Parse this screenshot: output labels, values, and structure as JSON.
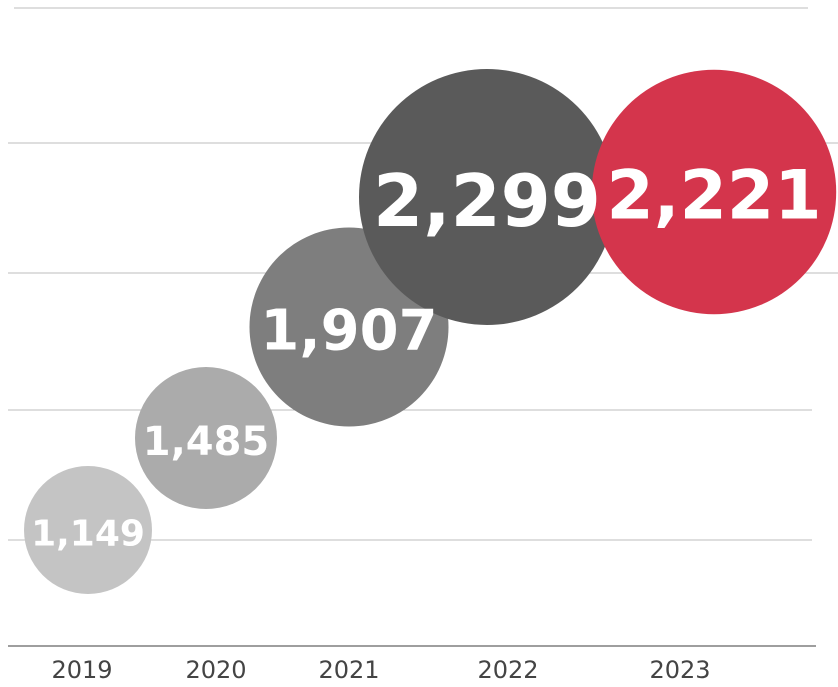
{
  "chart_data": {
    "type": "bubble",
    "categories": [
      "2019",
      "2020",
      "2021",
      "2022",
      "2023"
    ],
    "values": [
      1149,
      1485,
      1907,
      2299,
      2221
    ],
    "value_labels": [
      "1,149",
      "1,485",
      "1,907",
      "2,299",
      "2,221"
    ],
    "colors": [
      "#c4c4c4",
      "#ababab",
      "#7e7e7e",
      "#5a5a5a",
      "#d4354c"
    ],
    "highlight": "2023",
    "grid": true
  }
}
